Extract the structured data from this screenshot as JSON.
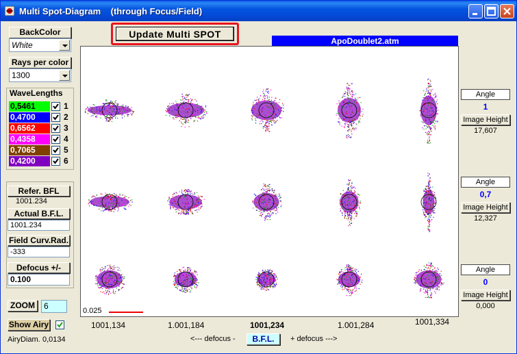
{
  "window": {
    "title": "Multi Spot-Diagram    (through Focus/Field)",
    "controls": [
      "minimize",
      "maximize",
      "close"
    ]
  },
  "left": {
    "backcolor_label": "BackColor",
    "backcolor_value": "White",
    "rays_label": "Rays per color",
    "rays_value": "1300",
    "wavelengths_label": "WaveLengths",
    "wavelengths": [
      {
        "value": "0,5461",
        "color": "#00ff00",
        "text_color": "#000000",
        "checked": true,
        "index": "1"
      },
      {
        "value": "0,4700",
        "color": "#0000ff",
        "text_color": "#ffffff",
        "checked": true,
        "index": "2"
      },
      {
        "value": "0,6562",
        "color": "#ff0000",
        "text_color": "#ffffff",
        "checked": true,
        "index": "3"
      },
      {
        "value": "0,4358",
        "color": "#ff00ff",
        "text_color": "#ffffff",
        "checked": true,
        "index": "4"
      },
      {
        "value": "0,7065",
        "color": "#804000",
        "text_color": "#ffffff",
        "checked": true,
        "index": "5"
      },
      {
        "value": "0,4200",
        "color": "#8000c0",
        "text_color": "#ffffff",
        "checked": true,
        "index": "6"
      }
    ],
    "refer_bfl_label": "Refer.   BFL",
    "refer_bfl_value": "1001.234",
    "actual_bfl_label": "Actual  B.F.L.",
    "actual_bfl_value": "1001.234",
    "field_curv_label": "Field Curv.Rad.",
    "field_curv_value": "-333",
    "defocus_label": "Defocus +/-",
    "defocus_value": "0.100",
    "zoom_label": "ZOOM",
    "zoom_value": "6",
    "show_airy_label": "Show Airy",
    "show_airy_checked": true,
    "airy_label": "AiryDiam.",
    "airy_value": "0,0134"
  },
  "main": {
    "update_label": "Update  Multi SPOT",
    "file_name": "ApoDoublet2.atm",
    "scale_label": "0.025",
    "bfl_positions": [
      "1001,134",
      "1.001,184",
      "1001,234",
      "1.001,284",
      "1001,334"
    ],
    "defocus_minus": "<---  defocus  -",
    "bfl_button": "B.F.L.",
    "defocus_plus": "+ defocus --->"
  },
  "fields": [
    {
      "angle_label": "Angle",
      "angle": "1",
      "ih_label": "Image Height",
      "ih": "17,607"
    },
    {
      "angle_label": "Angle",
      "angle": "0,7",
      "ih_label": "Image Height",
      "ih": "12,327"
    },
    {
      "angle_label": "Angle",
      "angle": "0",
      "ih_label": "Image Height",
      "ih": "0,000"
    }
  ],
  "spot_colors": [
    "#00a000",
    "#0000ff",
    "#ff0000",
    "#ff00ff",
    "#804000",
    "#8000c0"
  ]
}
